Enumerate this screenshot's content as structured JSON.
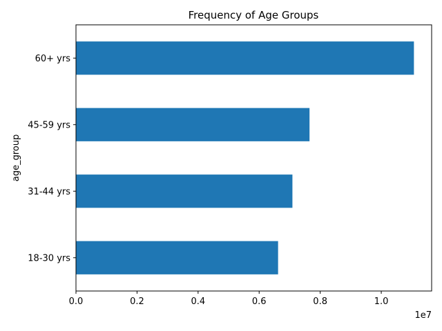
{
  "chart_data": {
    "type": "bar",
    "orientation": "horizontal",
    "title": "Frequency of Age Groups",
    "xlabel": "",
    "ylabel": "age_group",
    "offset_text": "1e7",
    "categories": [
      "18-30 yrs",
      "31-44 yrs",
      "45-59 yrs",
      "60+ yrs"
    ],
    "values": [
      6620000,
      7090000,
      7650000,
      11070000
    ],
    "xlim": [
      0,
      11650000
    ],
    "xticks": [
      0,
      2000000,
      4000000,
      6000000,
      8000000,
      10000000
    ],
    "xtick_labels": [
      "0.0",
      "0.2",
      "0.4",
      "0.6",
      "0.8",
      "1.0"
    ],
    "grid": false,
    "bar_color": "#1f77b4"
  }
}
